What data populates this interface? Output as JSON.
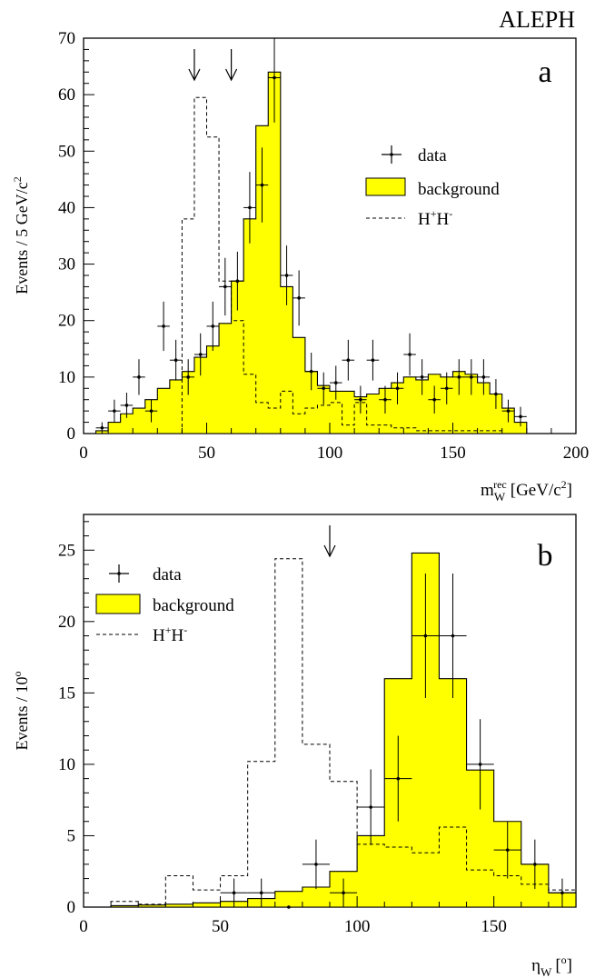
{
  "header": {
    "experiment": "ALEPH"
  },
  "colors": {
    "background_fill": "#ffff00",
    "line": "#000000"
  },
  "chart_data": [
    {
      "type": "histogram",
      "panel_label": "a",
      "xlabel": "m_W^rec [GeV/c^2]",
      "xlabel_parts": {
        "main": "m",
        "sub": "W",
        "sup": "rec",
        "unit": "[GeV/c",
        "unit_exp": "2",
        "unit_close": "]"
      },
      "ylabel": "Events / 5 GeV/c^2",
      "ylabel_parts": {
        "main": "Events / 5 GeV/c",
        "exp": "2"
      },
      "xlim": [
        0,
        200
      ],
      "ylim": [
        0,
        70
      ],
      "xticks": [
        0,
        50,
        100,
        150,
        200
      ],
      "xtick_labels": [
        "0",
        "50",
        "100",
        "150",
        "200"
      ],
      "yticks": [
        0,
        10,
        20,
        30,
        40,
        50,
        60,
        70
      ],
      "ytick_labels": [
        "0",
        "10",
        "20",
        "30",
        "40",
        "50",
        "60",
        "70"
      ],
      "legend": {
        "placement": "right",
        "items": [
          "data",
          "background",
          "H+H-"
        ],
        "signal_label": {
          "main": "H",
          "sup1": "+",
          "mid": "H",
          "sup2": "-"
        }
      },
      "arrows_x": [
        45,
        60
      ],
      "background": {
        "bin_edges": [
          0,
          5,
          10,
          15,
          20,
          25,
          30,
          35,
          40,
          45,
          50,
          55,
          60,
          65,
          70,
          75,
          80,
          85,
          90,
          95,
          100,
          105,
          110,
          115,
          120,
          125,
          130,
          135,
          140,
          145,
          150,
          155,
          160,
          165,
          170,
          175,
          180
        ],
        "values": [
          0,
          0.5,
          2,
          3.5,
          4.5,
          6,
          8,
          9.5,
          11,
          13.5,
          15.5,
          19.5,
          27,
          38,
          54.5,
          64,
          26,
          17,
          11,
          8.5,
          7.5,
          7.5,
          6.5,
          7,
          8,
          9,
          10,
          9.5,
          10.5,
          10,
          11,
          10.5,
          9,
          7,
          4.5,
          2
        ]
      },
      "signal": {
        "bin_edges": [
          40,
          45,
          50,
          55,
          60,
          65,
          70,
          75,
          80,
          85,
          90,
          95,
          100,
          105,
          110,
          115,
          120,
          125,
          130,
          135,
          140,
          145,
          150,
          155,
          160,
          165,
          170,
          175,
          180
        ],
        "values": [
          38,
          59.5,
          52.5,
          27,
          20,
          10.5,
          5.5,
          4.5,
          7.5,
          3.5,
          4.5,
          5,
          5.5,
          1.5,
          5.5,
          1.5,
          1.5,
          1,
          1,
          0.5,
          0.5,
          0.5,
          0.5,
          0.5,
          0.5,
          0.5,
          0,
          0
        ]
      },
      "data": {
        "x": [
          7.5,
          12.5,
          17.5,
          22.5,
          27.5,
          32.5,
          37.5,
          42.5,
          47.5,
          52.5,
          57.5,
          62.5,
          67.5,
          72.5,
          77.5,
          82.5,
          87.5,
          92.5,
          97.5,
          102.5,
          107.5,
          112.5,
          117.5,
          122.5,
          127.5,
          132.5,
          137.5,
          142.5,
          147.5,
          152.5,
          157.5,
          162.5,
          167.5,
          172.5,
          177.5
        ],
        "y": [
          1,
          4,
          5,
          10,
          4,
          19,
          13,
          10,
          14,
          19,
          26,
          27,
          40,
          44,
          63,
          28,
          24,
          11,
          8,
          9,
          13,
          6,
          13,
          6,
          8,
          14,
          10,
          6,
          8,
          10,
          10,
          10,
          7,
          4,
          3
        ]
      }
    },
    {
      "type": "histogram",
      "panel_label": "b",
      "xlabel": "η_W [°]",
      "xlabel_parts": {
        "main": "η",
        "sub": "W",
        "unit": "[",
        "unit_exp": "o",
        "unit_close": "]"
      },
      "ylabel": "Events / 10°",
      "ylabel_parts": {
        "main": "Events / 10",
        "exp": "o"
      },
      "xlim": [
        0,
        180
      ],
      "ylim": [
        0,
        27.5
      ],
      "xticks": [
        0,
        50,
        100,
        150
      ],
      "xtick_labels": [
        "0",
        "50",
        "100",
        "150"
      ],
      "yticks": [
        0,
        5,
        10,
        15,
        20,
        25
      ],
      "ytick_labels": [
        "0",
        "5",
        "10",
        "15",
        "20",
        "25"
      ],
      "legend": {
        "placement": "top-left",
        "items": [
          "data",
          "background",
          "H+H-"
        ],
        "signal_label": {
          "main": "H",
          "sup1": "+",
          "mid": "H",
          "sup2": "-"
        }
      },
      "arrows_x": [
        90
      ],
      "background": {
        "bin_edges": [
          0,
          10,
          20,
          30,
          40,
          50,
          60,
          70,
          80,
          90,
          100,
          110,
          120,
          130,
          140,
          150,
          160,
          170,
          180
        ],
        "values": [
          0,
          0.1,
          0.15,
          0.2,
          0.3,
          0.4,
          0.6,
          1.1,
          1.4,
          2.5,
          5,
          16,
          24.8,
          16,
          9.6,
          6,
          3,
          1
        ]
      },
      "signal": {
        "bin_edges": [
          0,
          10,
          20,
          30,
          40,
          50,
          60,
          70,
          80,
          90,
          100,
          110,
          120,
          130,
          140,
          150,
          160,
          170,
          180
        ],
        "values": [
          0,
          0.4,
          0.2,
          2.2,
          1.2,
          2.2,
          10.2,
          24.4,
          11.4,
          8.8,
          4.4,
          4.2,
          3.8,
          5.6,
          2.6,
          2.2,
          1.6,
          1.2
        ]
      },
      "data": {
        "x": [
          55,
          65,
          75,
          85,
          95,
          105,
          115,
          125,
          135,
          145,
          155,
          165,
          175
        ],
        "y": [
          1,
          1,
          0,
          3,
          1,
          7,
          9,
          19,
          19,
          10,
          4,
          3,
          1
        ]
      }
    }
  ]
}
